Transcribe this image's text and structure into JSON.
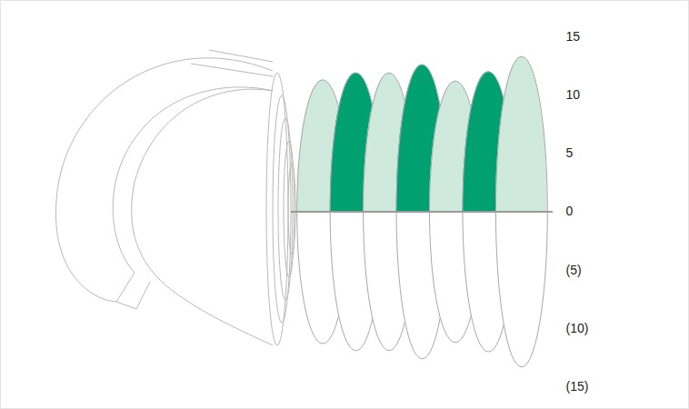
{
  "chart_data": {
    "type": "bar",
    "categories": [
      null,
      null,
      null,
      null,
      null,
      null,
      null
    ],
    "values": [
      11.3,
      11.9,
      11.9,
      12.6,
      11.2,
      12.0,
      13.3
    ],
    "colors": [
      "#cfe9dc",
      "#00a070",
      "#cfe9dc",
      "#00a070",
      "#cfe9dc",
      "#00a070",
      "#cfe9dc"
    ],
    "ylim": [
      -15,
      15
    ],
    "yticks": [
      {
        "value": 15,
        "label": "15"
      },
      {
        "value": 10,
        "label": "10"
      },
      {
        "value": 5,
        "label": "5"
      },
      {
        "value": 0,
        "label": "0"
      },
      {
        "value": -5,
        "label": "(5)"
      },
      {
        "value": -10,
        "label": "(10)"
      },
      {
        "value": -15,
        "label": "(15)"
      }
    ],
    "tick_labels": "y"
  }
}
